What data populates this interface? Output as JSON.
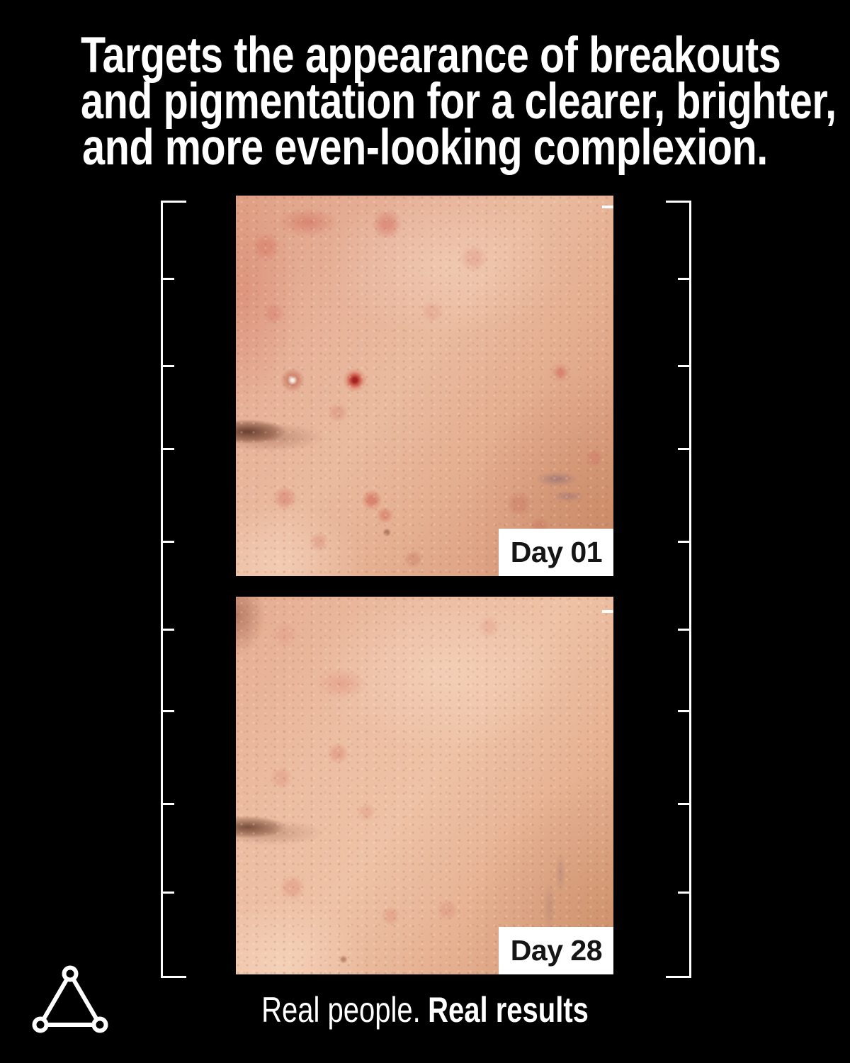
{
  "page": {
    "background_color": "#000000",
    "text_color": "#ffffff"
  },
  "headline": {
    "lines": [
      "Targets the appearance of breakouts",
      "and pigmentation for a clearer, brighter,",
      "and more even-looking complexion."
    ]
  },
  "before_after": {
    "photos": [
      {
        "label": "Day 01",
        "alt": "Close-up photo of cheek skin with breakouts and pigmentation"
      },
      {
        "label": "Day 28",
        "alt": "Close-up photo of the same cheek, clearer and more even-looking"
      }
    ],
    "label_bg_color": "#ffffff",
    "label_text_color": "#151515"
  },
  "caption": {
    "regular": "Real people.",
    "bold": "Real results"
  },
  "logo": {
    "icon": "triangle-with-circle-vertices-logo",
    "color": "#ffffff"
  }
}
